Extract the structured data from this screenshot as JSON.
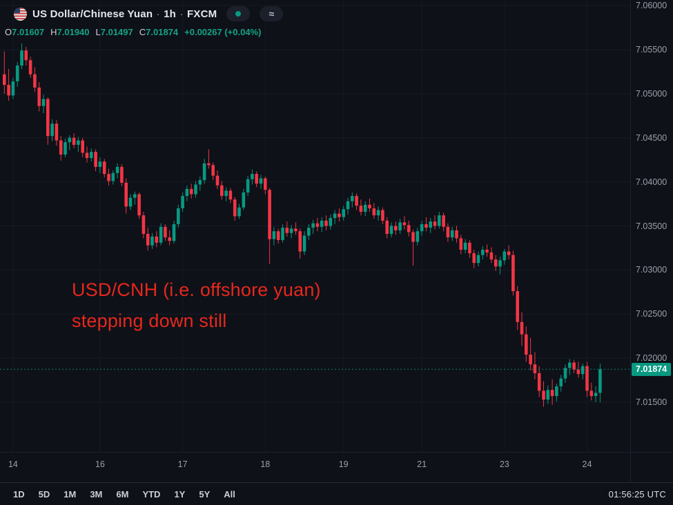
{
  "header": {
    "symbol": "US Dollar/Chinese Yuan",
    "separator": "·",
    "interval": "1h",
    "exchange": "FXCM",
    "flag_icon": "us-flag",
    "status_indicator_color": "#089981",
    "approx_button": "≈",
    "ohlc": {
      "o_label": "O",
      "o": "7.01607",
      "h_label": "H",
      "h": "7.01940",
      "l_label": "L",
      "l": "7.01497",
      "c_label": "C",
      "c": "7.01874",
      "change": "+0.00267 (+0.04%)"
    }
  },
  "annotation": {
    "line1": "USD/CNH (i.e. offshore yuan)",
    "line2": "stepping down still",
    "color": "#e8271d"
  },
  "toolbar": {
    "ranges": [
      "1D",
      "5D",
      "1M",
      "3M",
      "6M",
      "YTD",
      "1Y",
      "5Y",
      "All"
    ],
    "clock": "01:56:25 UTC"
  },
  "chart_data": {
    "type": "candlestick",
    "symbol": "USD/CNH",
    "title": "US Dollar/Chinese Yuan",
    "interval": "1h",
    "exchange": "FXCM",
    "up_color": "#089981",
    "down_color": "#f23645",
    "grid_color": "#171c26",
    "last_price": 7.01874,
    "last_price_label": "7.01874",
    "axis": {
      "price_top": 7.06063,
      "price_bottom": 7.00937,
      "gridlines": [
        {
          "price": 7.06,
          "label": "7.06000"
        },
        {
          "price": 7.055,
          "label": "7.05500"
        },
        {
          "price": 7.05,
          "label": "7.05000"
        },
        {
          "price": 7.045,
          "label": "7.04500"
        },
        {
          "price": 7.04,
          "label": "7.04000"
        },
        {
          "price": 7.035,
          "label": "7.03500"
        },
        {
          "price": 7.03,
          "label": "7.03000"
        },
        {
          "price": 7.025,
          "label": "7.02500"
        },
        {
          "price": 7.02,
          "label": "7.02000"
        },
        {
          "price": 7.015,
          "label": "7.01500"
        }
      ]
    },
    "time_anchors": [
      {
        "index": 2,
        "text": "14"
      },
      {
        "index": 22,
        "text": "16"
      },
      {
        "index": 41,
        "text": "17"
      },
      {
        "index": 60,
        "text": "18"
      },
      {
        "index": 78,
        "text": "19"
      },
      {
        "index": 96,
        "text": "21"
      },
      {
        "index": 115,
        "text": "23"
      },
      {
        "index": 134,
        "text": "24"
      }
    ],
    "candles": [
      [
        7.0522,
        7.0548,
        7.05,
        7.051
      ],
      [
        7.051,
        7.0528,
        7.0492,
        7.0498
      ],
      [
        7.0498,
        7.0518,
        7.0494,
        7.0514
      ],
      [
        7.0514,
        7.0536,
        7.0508,
        7.0532
      ],
      [
        7.0532,
        7.0557,
        7.0528,
        7.0549
      ],
      [
        7.0549,
        7.0553,
        7.0532,
        7.0538
      ],
      [
        7.0538,
        7.0542,
        7.0518,
        7.0522
      ],
      [
        7.0522,
        7.053,
        7.0502,
        7.0507
      ],
      [
        7.0507,
        7.0513,
        7.048,
        7.0486
      ],
      [
        7.0486,
        7.0499,
        7.0478,
        7.0494
      ],
      [
        7.0494,
        7.0496,
        7.0442,
        7.0452
      ],
      [
        7.0452,
        7.0471,
        7.0446,
        7.0466
      ],
      [
        7.0466,
        7.047,
        7.0441,
        7.0447
      ],
      [
        7.0447,
        7.0452,
        7.0424,
        7.0431
      ],
      [
        7.0431,
        7.0449,
        7.0428,
        7.0445
      ],
      [
        7.0445,
        7.0453,
        7.0436,
        7.045
      ],
      [
        7.045,
        7.0455,
        7.0438,
        7.0442
      ],
      [
        7.0442,
        7.0451,
        7.0434,
        7.0447
      ],
      [
        7.0447,
        7.045,
        7.0428,
        7.0433
      ],
      [
        7.0433,
        7.044,
        7.0422,
        7.0427
      ],
      [
        7.0427,
        7.0438,
        7.0423,
        7.0434
      ],
      [
        7.0434,
        7.0437,
        7.0412,
        7.0417
      ],
      [
        7.0417,
        7.0428,
        7.041,
        7.0423
      ],
      [
        7.0423,
        7.0426,
        7.0405,
        7.0409
      ],
      [
        7.0409,
        7.0415,
        7.0396,
        7.0401
      ],
      [
        7.0401,
        7.0413,
        7.0397,
        7.041
      ],
      [
        7.041,
        7.0421,
        7.0404,
        7.0417
      ],
      [
        7.0417,
        7.042,
        7.0395,
        7.0399
      ],
      [
        7.0399,
        7.0404,
        7.0364,
        7.0372
      ],
      [
        7.0372,
        7.0386,
        7.0368,
        7.0382
      ],
      [
        7.0382,
        7.0389,
        7.0374,
        7.0386
      ],
      [
        7.0386,
        7.0388,
        7.0358,
        7.0362
      ],
      [
        7.0362,
        7.0366,
        7.0336,
        7.0341
      ],
      [
        7.0341,
        7.0348,
        7.0322,
        7.0328
      ],
      [
        7.0328,
        7.0342,
        7.0324,
        7.0338
      ],
      [
        7.0338,
        7.0344,
        7.0326,
        7.0331
      ],
      [
        7.0331,
        7.0353,
        7.0328,
        7.0349
      ],
      [
        7.0349,
        7.0352,
        7.0333,
        7.0337
      ],
      [
        7.0337,
        7.0345,
        7.0328,
        7.0333
      ],
      [
        7.0333,
        7.0356,
        7.033,
        7.0352
      ],
      [
        7.0352,
        7.0374,
        7.0348,
        7.037
      ],
      [
        7.037,
        7.0388,
        7.0366,
        7.0384
      ],
      [
        7.0384,
        7.0396,
        7.0378,
        7.0392
      ],
      [
        7.0392,
        7.0398,
        7.0381,
        7.0386
      ],
      [
        7.0386,
        7.0401,
        7.0382,
        7.0397
      ],
      [
        7.0397,
        7.0406,
        7.039,
        7.0402
      ],
      [
        7.0402,
        7.0426,
        7.0398,
        7.0421
      ],
      [
        7.0421,
        7.0437,
        7.0415,
        7.0419
      ],
      [
        7.0419,
        7.0422,
        7.0402,
        7.0407
      ],
      [
        7.0407,
        7.0413,
        7.0392,
        7.0396
      ],
      [
        7.0396,
        7.0401,
        7.038,
        7.0384
      ],
      [
        7.0384,
        7.0394,
        7.0378,
        7.039
      ],
      [
        7.039,
        7.0393,
        7.0376,
        7.038
      ],
      [
        7.038,
        7.0383,
        7.0356,
        7.0361
      ],
      [
        7.0361,
        7.0375,
        7.0358,
        7.0371
      ],
      [
        7.0371,
        7.0392,
        7.0368,
        7.0388
      ],
      [
        7.0388,
        7.0407,
        7.0384,
        7.0403
      ],
      [
        7.0403,
        7.0414,
        7.0397,
        7.0409
      ],
      [
        7.0409,
        7.0412,
        7.0394,
        7.0398
      ],
      [
        7.0398,
        7.0408,
        7.0392,
        7.0404
      ],
      [
        7.0404,
        7.0406,
        7.0386,
        7.0391
      ],
      [
        7.0391,
        7.0393,
        7.0307,
        7.0335
      ],
      [
        7.0335,
        7.0349,
        7.0328,
        7.0344
      ],
      [
        7.0344,
        7.0347,
        7.033,
        7.0334
      ],
      [
        7.0334,
        7.0352,
        7.0331,
        7.0348
      ],
      [
        7.0348,
        7.0355,
        7.0338,
        7.0342
      ],
      [
        7.0342,
        7.0351,
        7.0336,
        7.0347
      ],
      [
        7.0347,
        7.0354,
        7.034,
        7.0344
      ],
      [
        7.0344,
        7.0347,
        7.0313,
        7.0321
      ],
      [
        7.0321,
        7.0344,
        7.0317,
        7.0339
      ],
      [
        7.0339,
        7.0352,
        7.0334,
        7.0348
      ],
      [
        7.0348,
        7.0357,
        7.0341,
        7.0353
      ],
      [
        7.0353,
        7.0359,
        7.0344,
        7.0349
      ],
      [
        7.0349,
        7.036,
        7.0343,
        7.0356
      ],
      [
        7.0356,
        7.0362,
        7.0345,
        7.035
      ],
      [
        7.035,
        7.0363,
        7.0346,
        7.0359
      ],
      [
        7.0359,
        7.0368,
        7.0352,
        7.0364
      ],
      [
        7.0364,
        7.037,
        7.0355,
        7.036
      ],
      [
        7.036,
        7.0373,
        7.0356,
        7.0369
      ],
      [
        7.0369,
        7.0382,
        7.0363,
        7.0378
      ],
      [
        7.0378,
        7.0388,
        7.0371,
        7.0384
      ],
      [
        7.0384,
        7.0387,
        7.0368,
        7.0373
      ],
      [
        7.0373,
        7.038,
        7.0362,
        7.0366
      ],
      [
        7.0366,
        7.0378,
        7.0361,
        7.0374
      ],
      [
        7.0374,
        7.0381,
        7.0366,
        7.037
      ],
      [
        7.037,
        7.0376,
        7.0358,
        7.0362
      ],
      [
        7.0362,
        7.0372,
        7.0356,
        7.0368
      ],
      [
        7.0368,
        7.0371,
        7.0352,
        7.0356
      ],
      [
        7.0356,
        7.036,
        7.0336,
        7.0341
      ],
      [
        7.0341,
        7.0354,
        7.0337,
        7.035
      ],
      [
        7.035,
        7.0355,
        7.034,
        7.0345
      ],
      [
        7.0345,
        7.0358,
        7.0341,
        7.0354
      ],
      [
        7.0354,
        7.0361,
        7.0346,
        7.0351
      ],
      [
        7.0351,
        7.0356,
        7.0338,
        7.0343
      ],
      [
        7.0343,
        7.0346,
        7.0305,
        7.0332
      ],
      [
        7.0332,
        7.0348,
        7.0328,
        7.0344
      ],
      [
        7.0344,
        7.0356,
        7.0339,
        7.0352
      ],
      [
        7.0352,
        7.036,
        7.0344,
        7.0348
      ],
      [
        7.0348,
        7.0359,
        7.0342,
        7.0355
      ],
      [
        7.0355,
        7.0362,
        7.0346,
        7.035
      ],
      [
        7.035,
        7.0366,
        7.0347,
        7.0362
      ],
      [
        7.0362,
        7.0365,
        7.0344,
        7.0349
      ],
      [
        7.0349,
        7.0353,
        7.0332,
        7.0337
      ],
      [
        7.0337,
        7.0349,
        7.0333,
        7.0345
      ],
      [
        7.0345,
        7.035,
        7.0331,
        7.0336
      ],
      [
        7.0336,
        7.034,
        7.0318,
        7.0323
      ],
      [
        7.0323,
        7.0335,
        7.0319,
        7.0331
      ],
      [
        7.0331,
        7.0334,
        7.0314,
        7.0319
      ],
      [
        7.0319,
        7.0323,
        7.0302,
        7.0308
      ],
      [
        7.0308,
        7.0321,
        7.0304,
        7.0317
      ],
      [
        7.0317,
        7.0327,
        7.0312,
        7.0323
      ],
      [
        7.0323,
        7.0329,
        7.0315,
        7.032
      ],
      [
        7.032,
        7.0326,
        7.0308,
        7.0312
      ],
      [
        7.0312,
        7.0317,
        7.0299,
        7.0304
      ],
      [
        7.0304,
        7.0315,
        7.0295,
        7.0311
      ],
      [
        7.0311,
        7.0324,
        7.0306,
        7.0321
      ],
      [
        7.0321,
        7.0328,
        7.0312,
        7.0317
      ],
      [
        7.0317,
        7.0322,
        7.0271,
        7.0276
      ],
      [
        7.0276,
        7.0282,
        7.0232,
        7.0241
      ],
      [
        7.0241,
        7.0252,
        7.0214,
        7.0227
      ],
      [
        7.0227,
        7.0236,
        7.0196,
        7.0204
      ],
      [
        7.0204,
        7.0223,
        7.0186,
        7.0193
      ],
      [
        7.0193,
        7.0207,
        7.0176,
        7.0183
      ],
      [
        7.0183,
        7.0191,
        7.0156,
        7.0163
      ],
      [
        7.0163,
        7.0174,
        7.0145,
        7.0153
      ],
      [
        7.0153,
        7.0169,
        7.0148,
        7.0164
      ],
      [
        7.0164,
        7.0176,
        7.0147,
        7.0157
      ],
      [
        7.0157,
        7.0171,
        7.0151,
        7.0168
      ],
      [
        7.0168,
        7.0181,
        7.0162,
        7.0177
      ],
      [
        7.0177,
        7.0193,
        7.0172,
        7.0189
      ],
      [
        7.0189,
        7.0199,
        7.0181,
        7.0195
      ],
      [
        7.0195,
        7.0198,
        7.0183,
        7.0187
      ],
      [
        7.0187,
        7.0196,
        7.0178,
        7.0182
      ],
      [
        7.0182,
        7.0194,
        7.0176,
        7.0191
      ],
      [
        7.0191,
        7.0196,
        7.0156,
        7.0163
      ],
      [
        7.0163,
        7.0172,
        7.0152,
        7.0157
      ],
      [
        7.0157,
        7.0168,
        7.015,
        7.01607
      ],
      [
        7.01607,
        7.0194,
        7.01497,
        7.01874
      ]
    ]
  }
}
